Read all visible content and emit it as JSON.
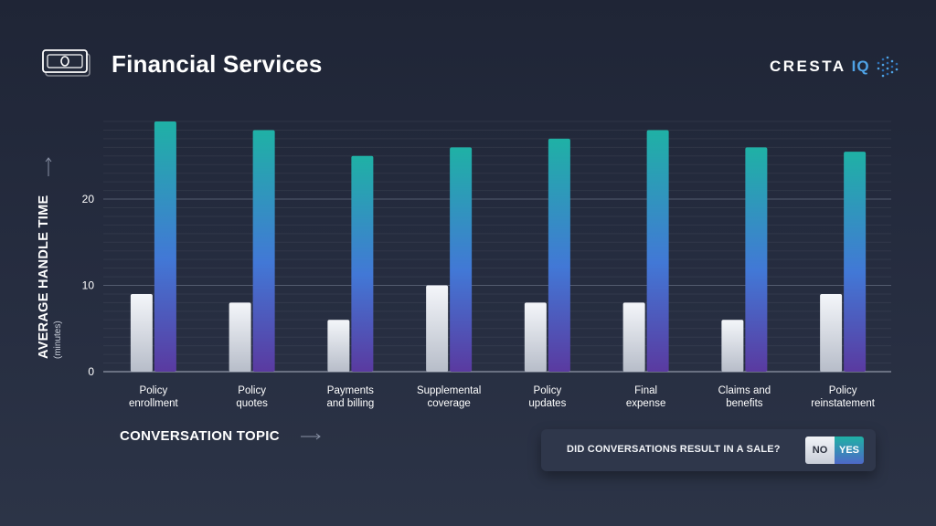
{
  "header": {
    "title": "Financial Services",
    "icon": "cash-icon"
  },
  "brand": {
    "name": "CRESTA",
    "suffix": "IQ",
    "accent": "#4fa3e6"
  },
  "colors": {
    "no_bar": "#e9ecf2",
    "yes_bar_top": "#1fb1a5",
    "yes_bar_mid": "#4278d6",
    "yes_bar_bottom": "#5a3aa0",
    "grid": "#5c6478"
  },
  "chart_data": {
    "type": "bar",
    "title": "Financial Services",
    "xlabel": "CONVERSATION TOPIC",
    "ylabel": "AVERAGE HANDLE TIME",
    "ylabel_unit": "(minutes)",
    "ylim": [
      0,
      29
    ],
    "yticks": [
      0,
      10,
      20
    ],
    "grid": true,
    "categories": [
      [
        "Policy",
        "enrollment"
      ],
      [
        "Policy",
        "quotes"
      ],
      [
        "Payments",
        "and billing"
      ],
      [
        "Supplemental",
        "coverage"
      ],
      [
        "Policy",
        "updates"
      ],
      [
        "Final",
        "expense"
      ],
      [
        "Claims and",
        "benefits"
      ],
      [
        "Policy",
        "reinstatement"
      ]
    ],
    "series": [
      {
        "name": "NO",
        "values": [
          9,
          8,
          6,
          10,
          8,
          8,
          6,
          9
        ]
      },
      {
        "name": "YES",
        "values": [
          29,
          28,
          25,
          26,
          27,
          28,
          26,
          25.5
        ]
      }
    ]
  },
  "legend": {
    "question": "DID CONVERSATIONS RESULT IN A SALE?",
    "no_label": "NO",
    "yes_label": "YES"
  }
}
